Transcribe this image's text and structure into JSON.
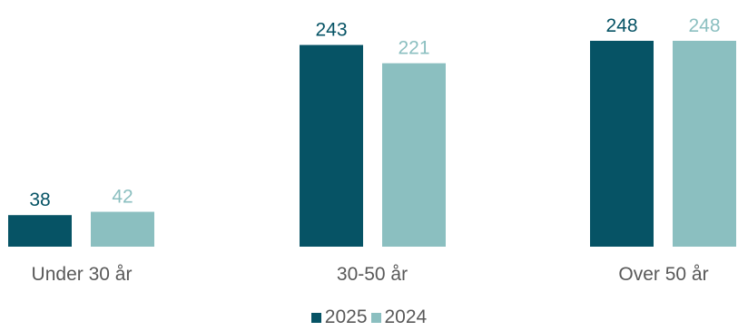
{
  "chart_data": {
    "type": "bar",
    "title": "",
    "xlabel": "",
    "ylabel": "",
    "categories": [
      "Under 30 år",
      "30-50 år",
      "Over 50 år"
    ],
    "series": [
      {
        "name": "2025",
        "values": [
          38,
          243,
          248
        ],
        "color": "#065365"
      },
      {
        "name": "2024",
        "values": [
          42,
          221,
          248
        ],
        "color": "#8bbfc0"
      }
    ],
    "ylim": [
      0,
      248
    ],
    "grid": false,
    "legend_position": "bottom",
    "data_labels": true
  },
  "colors": {
    "category_label": "#595959",
    "background": "#ffffff"
  }
}
